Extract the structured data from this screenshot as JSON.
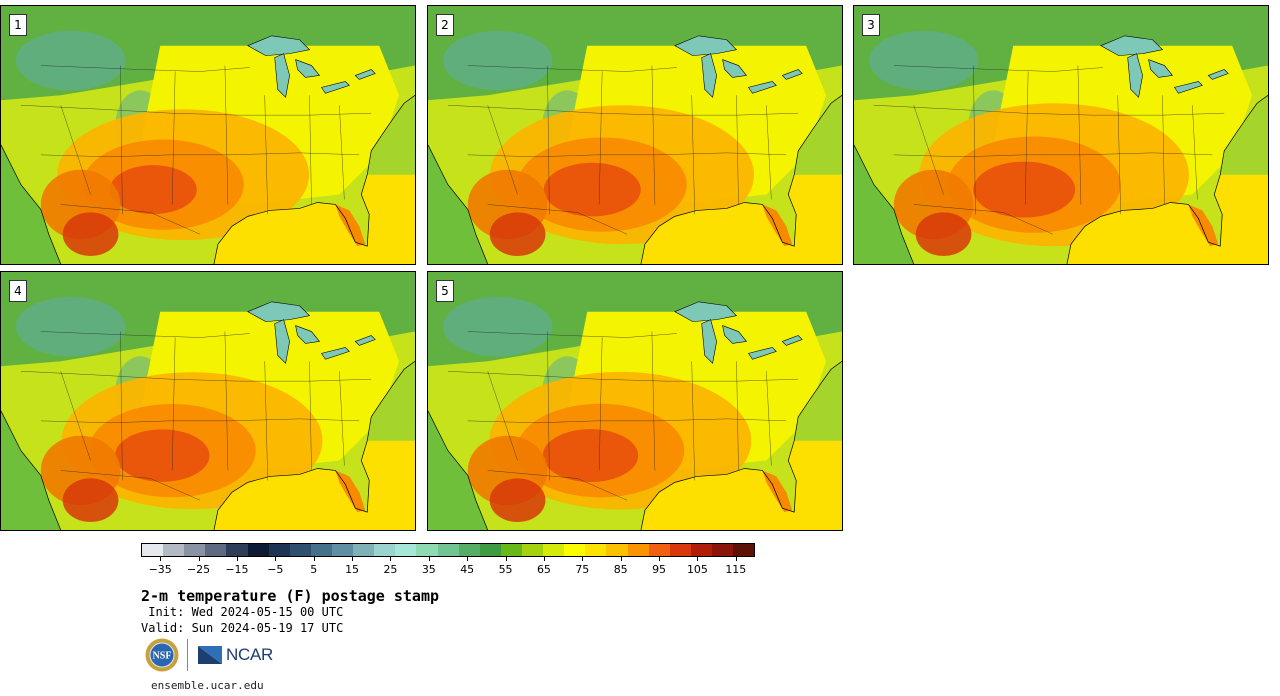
{
  "panels": [
    {
      "label": "1",
      "heat": 0.55
    },
    {
      "label": "2",
      "heat": 0.75
    },
    {
      "label": "3",
      "heat": 0.85
    },
    {
      "label": "4",
      "heat": 0.7
    },
    {
      "label": "5",
      "heat": 0.72
    }
  ],
  "colorbar": {
    "colors": [
      "#e6e9ee",
      "#b4bac4",
      "#8a93a3",
      "#5e6a80",
      "#2f3d58",
      "#0c1a33",
      "#1d3552",
      "#2f4f6e",
      "#44708a",
      "#5f8fa2",
      "#7fb1b6",
      "#9bd4cf",
      "#a6e8d8",
      "#8fd9b3",
      "#73c493",
      "#55ad66",
      "#3e9b42",
      "#69b81a",
      "#a6d10f",
      "#d6ea0a",
      "#fafc00",
      "#fde400",
      "#fcc200",
      "#fa9500",
      "#f06010",
      "#d8380a",
      "#b01e08",
      "#8b1508",
      "#5e1206"
    ],
    "tick_labels": [
      "-35",
      "-25",
      "-15",
      "-5",
      "5",
      "15",
      "25",
      "35",
      "45",
      "55",
      "65",
      "75",
      "85",
      "95",
      "105",
      "115"
    ],
    "min": -40,
    "max": 120
  },
  "title": "2-m temperature (F) postage stamp",
  "init": " Init: Wed 2024-05-15 00 UTC",
  "valid": "Valid: Sun 2024-05-19 17 UTC",
  "logos": {
    "nsf": "NSF",
    "ncar": "NCAR"
  },
  "site": "ensemble.ucar.edu"
}
